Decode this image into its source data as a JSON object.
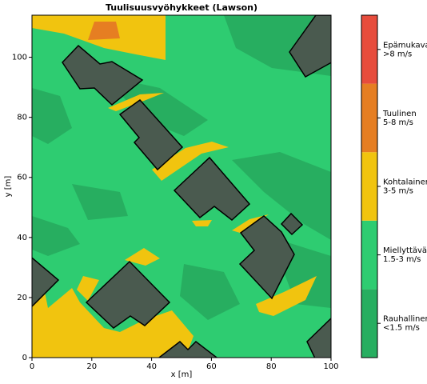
{
  "chart_data": {
    "type": "contourf",
    "title": "Tuulisuusvyöhykkeet (Lawson)",
    "x_label": "x [m]",
    "y_label": "y [m]",
    "xlim": [
      0,
      100
    ],
    "ylim": [
      0,
      114
    ],
    "xticks": [
      0,
      20,
      40,
      60,
      80,
      100
    ],
    "yticks": [
      0,
      20,
      40,
      60,
      80,
      100
    ],
    "colorbar": {
      "labels": [
        [
          "Rauhallinen",
          "<1.5 m/s"
        ],
        [
          "Miellyttävä",
          "1.5-3 m/s"
        ],
        [
          "Kohtalainen",
          "3-5 m/s"
        ],
        [
          "Tuulinen",
          "5-8 m/s"
        ],
        [
          "Epämukava",
          ">8 m/s"
        ]
      ],
      "colors": [
        "#27ae60",
        "#2ecc71",
        "#f1c40f",
        "#e67e22",
        "#e74c3c"
      ]
    }
  }
}
